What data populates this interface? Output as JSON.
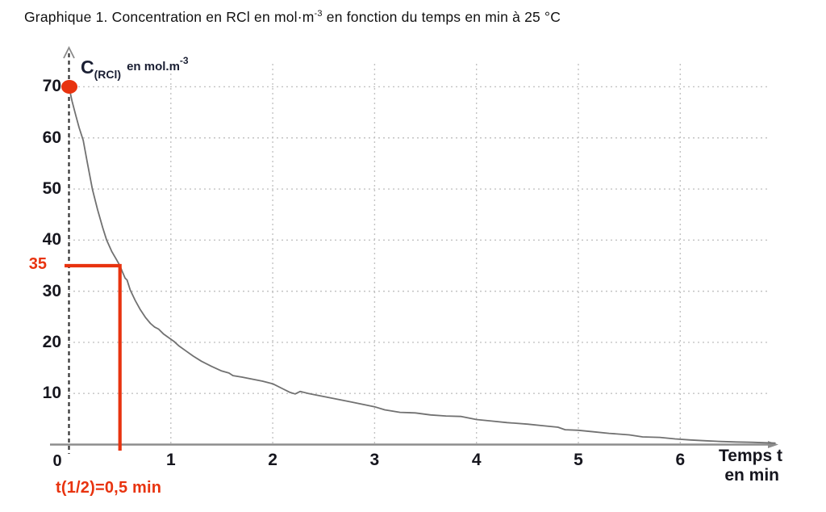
{
  "page": {
    "title": {
      "prefix": "Graphique 1. Concentration en RCl en mol·m",
      "sup": "-3",
      "suffix": " en fonction du temps en min à 25 °C"
    }
  },
  "chart_data": {
    "type": "line",
    "title": "Graphique 1. Concentration en RCl en mol·m-3 en fonction du temps en min à 25 °C",
    "x_axis": {
      "name_line1": "Temps t",
      "name_line2": "en min",
      "origin_label": "0",
      "ticks": [
        1,
        2,
        3,
        4,
        5,
        6
      ],
      "range": [
        0,
        7.1
      ],
      "grid": true
    },
    "y_axis": {
      "label_symbol": "C",
      "label_subscript": "(RCl)",
      "label_unit": "en mol.m",
      "label_superscript": "-3",
      "ticks": [
        70,
        60,
        50,
        40,
        30,
        20,
        10
      ],
      "range": [
        0,
        74
      ],
      "grid": true
    },
    "legend": "none",
    "series": [
      {
        "name": "C(RCl)",
        "color": "#717171",
        "points": [
          [
            0,
            70
          ],
          [
            0.03,
            67.2
          ],
          [
            0.07,
            64.2
          ],
          [
            0.1,
            62
          ],
          [
            0.14,
            59.5
          ],
          [
            0.18,
            55.2
          ],
          [
            0.23,
            50
          ],
          [
            0.28,
            46
          ],
          [
            0.33,
            42.5
          ],
          [
            0.37,
            40
          ],
          [
            0.42,
            37.8
          ],
          [
            0.46,
            36.4
          ],
          [
            0.5,
            35
          ],
          [
            0.52,
            34
          ],
          [
            0.55,
            32.6
          ],
          [
            0.57,
            32.2
          ],
          [
            0.6,
            30.3
          ],
          [
            0.65,
            28.2
          ],
          [
            0.7,
            26.4
          ],
          [
            0.75,
            24.9
          ],
          [
            0.8,
            23.7
          ],
          [
            0.84,
            23.0
          ],
          [
            0.88,
            22.6
          ],
          [
            0.93,
            21.6
          ],
          [
            0.98,
            20.9
          ],
          [
            1.03,
            20.2
          ],
          [
            1.08,
            19.3
          ],
          [
            1.15,
            18.3
          ],
          [
            1.22,
            17.3
          ],
          [
            1.3,
            16.3
          ],
          [
            1.4,
            15.3
          ],
          [
            1.5,
            14.4
          ],
          [
            1.57,
            14.0
          ],
          [
            1.61,
            13.5
          ],
          [
            1.7,
            13.2
          ],
          [
            1.8,
            12.8
          ],
          [
            1.9,
            12.4
          ],
          [
            2.0,
            11.9
          ],
          [
            2.1,
            10.9
          ],
          [
            2.17,
            10.2
          ],
          [
            2.22,
            9.9
          ],
          [
            2.27,
            10.4
          ],
          [
            2.35,
            10.0
          ],
          [
            2.45,
            9.6
          ],
          [
            2.6,
            9.0
          ],
          [
            2.75,
            8.4
          ],
          [
            2.9,
            7.8
          ],
          [
            3.0,
            7.4
          ],
          [
            3.1,
            6.8
          ],
          [
            3.25,
            6.3
          ],
          [
            3.4,
            6.2
          ],
          [
            3.55,
            5.8
          ],
          [
            3.7,
            5.6
          ],
          [
            3.85,
            5.5
          ],
          [
            4.0,
            4.9
          ],
          [
            4.15,
            4.6
          ],
          [
            4.3,
            4.3
          ],
          [
            4.5,
            4.0
          ],
          [
            4.65,
            3.7
          ],
          [
            4.8,
            3.4
          ],
          [
            4.87,
            2.9
          ],
          [
            5.0,
            2.8
          ],
          [
            5.15,
            2.5
          ],
          [
            5.3,
            2.2
          ],
          [
            5.5,
            1.9
          ],
          [
            5.63,
            1.5
          ],
          [
            5.8,
            1.4
          ],
          [
            5.95,
            1.1
          ],
          [
            6.1,
            0.9
          ],
          [
            6.25,
            0.75
          ],
          [
            6.4,
            0.6
          ],
          [
            6.55,
            0.5
          ],
          [
            6.7,
            0.45
          ],
          [
            6.85,
            0.35
          ],
          [
            6.93,
            0.3
          ]
        ]
      }
    ],
    "annotations": {
      "start_point": {
        "t": 0,
        "value": 70
      },
      "half_life": {
        "value_label": "35",
        "value": 35,
        "time": 0.5,
        "time_label": "t(1/2)=0,5 min"
      }
    },
    "colors": {
      "curve": "#717171",
      "grid": "#c3c3c3",
      "x_axis": "#8d8d8d",
      "y_axis_dash": "#333333",
      "annotation_red": "#e8330f",
      "tick_text": "#16161e"
    }
  }
}
